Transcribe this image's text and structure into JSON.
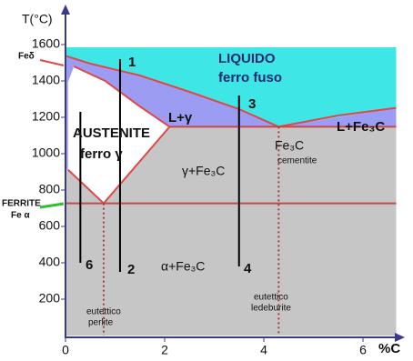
{
  "chart_data": {
    "type": "phase-diagram",
    "ylabel": "T(°C)",
    "xlabel": "%C",
    "xlim": [
      0,
      6.9
    ],
    "ylim": [
      0,
      1800
    ],
    "xticks": [
      0,
      2,
      4,
      6
    ],
    "yticks": [
      200,
      400,
      600,
      800,
      1000,
      1200,
      1400,
      1600
    ],
    "regions": [
      {
        "color": "#c6c6c6",
        "x": [
          0,
          6.67,
          6.67,
          0
        ],
        "y": [
          0,
          0,
          1148,
          1148
        ]
      },
      {
        "color": "#3fe6e6",
        "x": [
          0,
          6.67,
          6.67,
          4.3,
          3.5,
          2.5,
          1.5,
          0.5,
          0
        ],
        "y": [
          1585,
          1585,
          1252,
          1148,
          1245,
          1340,
          1430,
          1495,
          1538
        ]
      },
      {
        "color": "#9c9cf2",
        "x": [
          0,
          0.5,
          1.5,
          2.5,
          3.5,
          4.3,
          2.1,
          0,
          0
        ],
        "y": [
          1538,
          1495,
          1430,
          1340,
          1245,
          1148,
          1148,
          912,
          1538
        ]
      },
      {
        "color": "#9c9cf2",
        "x": [
          4.3,
          6.67,
          6.67
        ],
        "y": [
          1148,
          1148,
          1252
        ]
      },
      {
        "color": "#ffffff",
        "x": [
          0.05,
          0.17,
          0.8,
          1.5,
          2.1,
          0.77,
          0.05
        ],
        "y": [
          1394,
          1480,
          1400,
          1260,
          1148,
          727,
          912
        ]
      }
    ],
    "lines": [
      {
        "color": "#e04848",
        "style": "solid",
        "x": [
          0,
          0.5,
          1.5,
          2.5,
          3.5,
          4.3
        ],
        "y": [
          1538,
          1495,
          1430,
          1340,
          1245,
          1148
        ]
      },
      {
        "color": "#e04848",
        "style": "solid",
        "x": [
          4.3,
          5.5,
          6.67
        ],
        "y": [
          1148,
          1210,
          1252
        ]
      },
      {
        "color": "#e04848",
        "style": "solid",
        "x": [
          0.17,
          0.8,
          1.5,
          2.1
        ],
        "y": [
          1480,
          1400,
          1260,
          1148
        ]
      },
      {
        "color": "#e04848",
        "style": "solid",
        "x": [
          0.05,
          0.77,
          2.1
        ],
        "y": [
          912,
          727,
          1148
        ]
      },
      {
        "color": "#c84848",
        "style": "solid",
        "x": [
          2.1,
          6.67
        ],
        "y": [
          1148,
          1148
        ]
      },
      {
        "color": "#c84848",
        "style": "solid",
        "x": [
          0,
          6.67
        ],
        "y": [
          727,
          727
        ]
      },
      {
        "color": "#a04040",
        "style": "dotted",
        "x": [
          0.77,
          0.77
        ],
        "y": [
          727,
          0
        ]
      },
      {
        "color": "#a04040",
        "style": "dotted",
        "x": [
          4.3,
          4.3
        ],
        "y": [
          1148,
          0
        ]
      },
      {
        "color": "#000000",
        "style": "solid",
        "x": [
          0.3,
          0.3
        ],
        "y": [
          1230,
          400
        ]
      },
      {
        "color": "#000000",
        "style": "solid",
        "x": [
          1.1,
          1.1
        ],
        "y": [
          1520,
          350
        ]
      },
      {
        "color": "#000000",
        "style": "solid",
        "x": [
          3.5,
          3.5
        ],
        "y": [
          1320,
          380
        ]
      }
    ],
    "annotations": [
      "LIQUIDO",
      "ferro fuso",
      "L+γ",
      "L+Fe₃C",
      "AUSTENITE",
      "ferro γ",
      "γ+Fe₃C",
      "Fe₃C",
      "cementite",
      "α+Fe₃C",
      "eutettico",
      "perlite",
      "eutettico",
      "ledeburite",
      "1",
      "2",
      "3",
      "4",
      "6",
      "Feδ",
      "FERRITE",
      "Fe α"
    ]
  }
}
